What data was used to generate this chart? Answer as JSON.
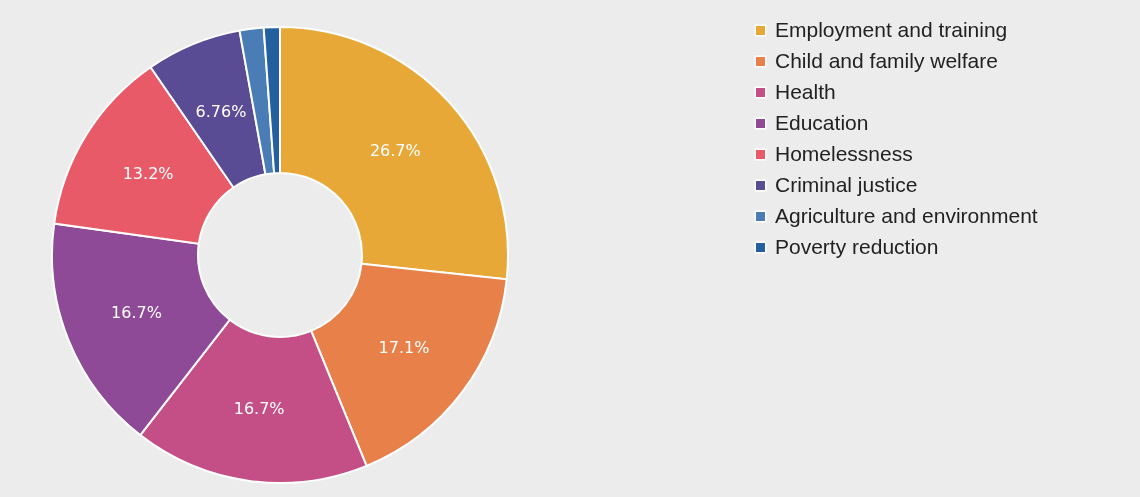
{
  "chart_data": {
    "type": "donut",
    "categories": [
      "Employment and training",
      "Child and family welfare",
      "Health",
      "Education",
      "Homelessness",
      "Criminal justice",
      "Agriculture and environment",
      "Poverty reduction"
    ],
    "values": [
      26.7,
      17.1,
      16.7,
      16.7,
      13.2,
      6.76,
      1.7,
      1.14
    ],
    "colors": [
      "#e8a838",
      "#e8804a",
      "#c44f86",
      "#8e4a96",
      "#e85a68",
      "#5a4c94",
      "#4a7db5",
      "#2460a0"
    ],
    "value_labels": [
      "26.7%",
      "17.1%",
      "16.7%",
      "16.7%",
      "13.2%",
      "6.76%",
      null,
      null
    ],
    "legend": "top right"
  }
}
